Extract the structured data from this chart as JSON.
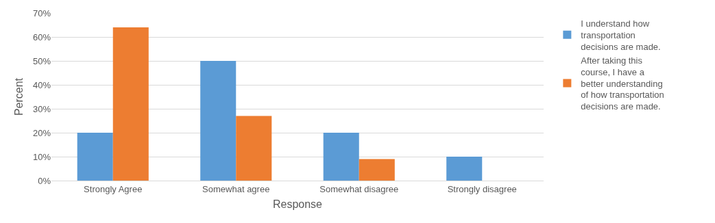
{
  "chart_data": {
    "type": "bar",
    "xlabel": "Response",
    "ylabel": "Percent",
    "categories": [
      "Strongly Agree",
      "Somewhat agree",
      "Somewhat disagree",
      "Strongly disagree"
    ],
    "series": [
      {
        "name": "I understand how transportation decisions are made.",
        "color": "#5b9bd5",
        "values": [
          20,
          50,
          20,
          10
        ]
      },
      {
        "name": "After taking this course, I have a better understanding of how transportation decisions are made.",
        "color": "#ed7d31",
        "values": [
          64,
          27,
          9,
          0
        ]
      }
    ],
    "ylim": [
      0,
      70
    ],
    "yticks": [
      {
        "value": 0,
        "label": "0%"
      },
      {
        "value": 10,
        "label": "10%"
      },
      {
        "value": 20,
        "label": "20%"
      },
      {
        "value": 30,
        "label": "30%"
      },
      {
        "value": 40,
        "label": "40%"
      },
      {
        "value": 50,
        "label": "50%"
      },
      {
        "value": 60,
        "label": "60%"
      },
      {
        "value": 70,
        "label": "70%"
      }
    ],
    "grid": "y",
    "legend": "right"
  }
}
